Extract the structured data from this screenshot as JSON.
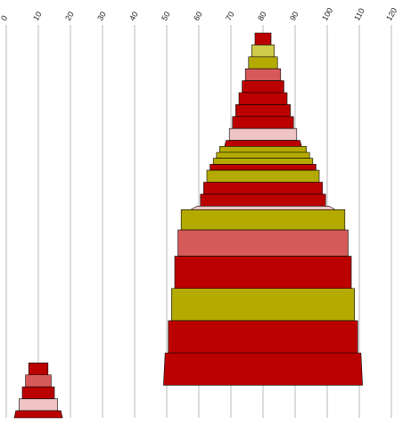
{
  "chart_data": {
    "type": "bar",
    "orientation": "horizontal-stacked-funnel",
    "xlim": [
      0,
      120
    ],
    "x_ticks": [
      0,
      10,
      20,
      30,
      40,
      50,
      60,
      70,
      80,
      90,
      100,
      110,
      120
    ],
    "grid": true,
    "legend": "none",
    "colors": {
      "red": "#bb0000",
      "salmon": "#d75a5a",
      "olive": "#b4aa00",
      "lightolive": "#cfcb4a",
      "pink": "#f0c4c4"
    },
    "series": [
      {
        "bands": [
          {
            "left": 77.5,
            "right": 82.5,
            "thickness": 1.0,
            "color": "red"
          },
          {
            "left": 76.5,
            "right": 83.5,
            "thickness": 1.0,
            "color": "lightolive"
          },
          {
            "left": 75.5,
            "right": 84.5,
            "thickness": 1.0,
            "color": "olive"
          },
          {
            "left": 74.5,
            "right": 85.5,
            "thickness": 1.0,
            "color": "salmon"
          },
          {
            "left": 73.5,
            "right": 86.5,
            "thickness": 1.0,
            "color": "red"
          },
          {
            "left": 72.5,
            "right": 87.5,
            "thickness": 1.0,
            "color": "red"
          },
          {
            "left": 71.5,
            "right": 88.5,
            "thickness": 1.0,
            "color": "red"
          },
          {
            "left": 70.5,
            "right": 89.5,
            "thickness": 1.0,
            "color": "red"
          },
          {
            "left": 69.5,
            "right": 90.5,
            "thickness": 1.0,
            "color": "pink"
          },
          {
            "left": 68.5,
            "right": 91.5,
            "thickness": 0.5,
            "color": "red"
          },
          {
            "left": 66.5,
            "right": 93.5,
            "thickness": 0.5,
            "color": "olive"
          },
          {
            "left": 65.5,
            "right": 94.5,
            "thickness": 0.5,
            "color": "olive"
          },
          {
            "left": 64.5,
            "right": 95.5,
            "thickness": 0.5,
            "color": "olive"
          },
          {
            "left": 63.5,
            "right": 96.5,
            "thickness": 0.5,
            "color": "red"
          },
          {
            "left": 62.5,
            "right": 97.5,
            "thickness": 1.0,
            "color": "olive"
          },
          {
            "left": 61.5,
            "right": 98.5,
            "thickness": 1.0,
            "color": "red"
          },
          {
            "left": 60.5,
            "right": 99.5,
            "thickness": 1.0,
            "color": "red"
          },
          {
            "left": 59.5,
            "right": 100.5,
            "thickness": 0.3,
            "color": "pink"
          },
          {
            "left": 54.5,
            "right": 105.5,
            "thickness": 1.7,
            "color": "olive"
          },
          {
            "left": 53.5,
            "right": 106.5,
            "thickness": 2.2,
            "color": "salmon"
          },
          {
            "left": 52.5,
            "right": 107.5,
            "thickness": 2.7,
            "color": "red"
          },
          {
            "left": 51.5,
            "right": 108.5,
            "thickness": 2.7,
            "color": "olive"
          },
          {
            "left": 50.5,
            "right": 109.5,
            "thickness": 2.7,
            "color": "red"
          },
          {
            "left": 49.5,
            "right": 110.5,
            "thickness": 2.7,
            "color": "red"
          }
        ]
      },
      {
        "bands": [
          {
            "left": 7.0,
            "right": 13.0,
            "thickness": 1.0,
            "color": "red"
          },
          {
            "left": 6.0,
            "right": 14.0,
            "thickness": 1.0,
            "color": "salmon"
          },
          {
            "left": 5.0,
            "right": 15.0,
            "thickness": 1.0,
            "color": "red"
          },
          {
            "left": 4.0,
            "right": 16.0,
            "thickness": 1.0,
            "color": "pink"
          },
          {
            "left": 3.0,
            "right": 17.0,
            "thickness": 0.6,
            "color": "red"
          }
        ]
      }
    ]
  }
}
